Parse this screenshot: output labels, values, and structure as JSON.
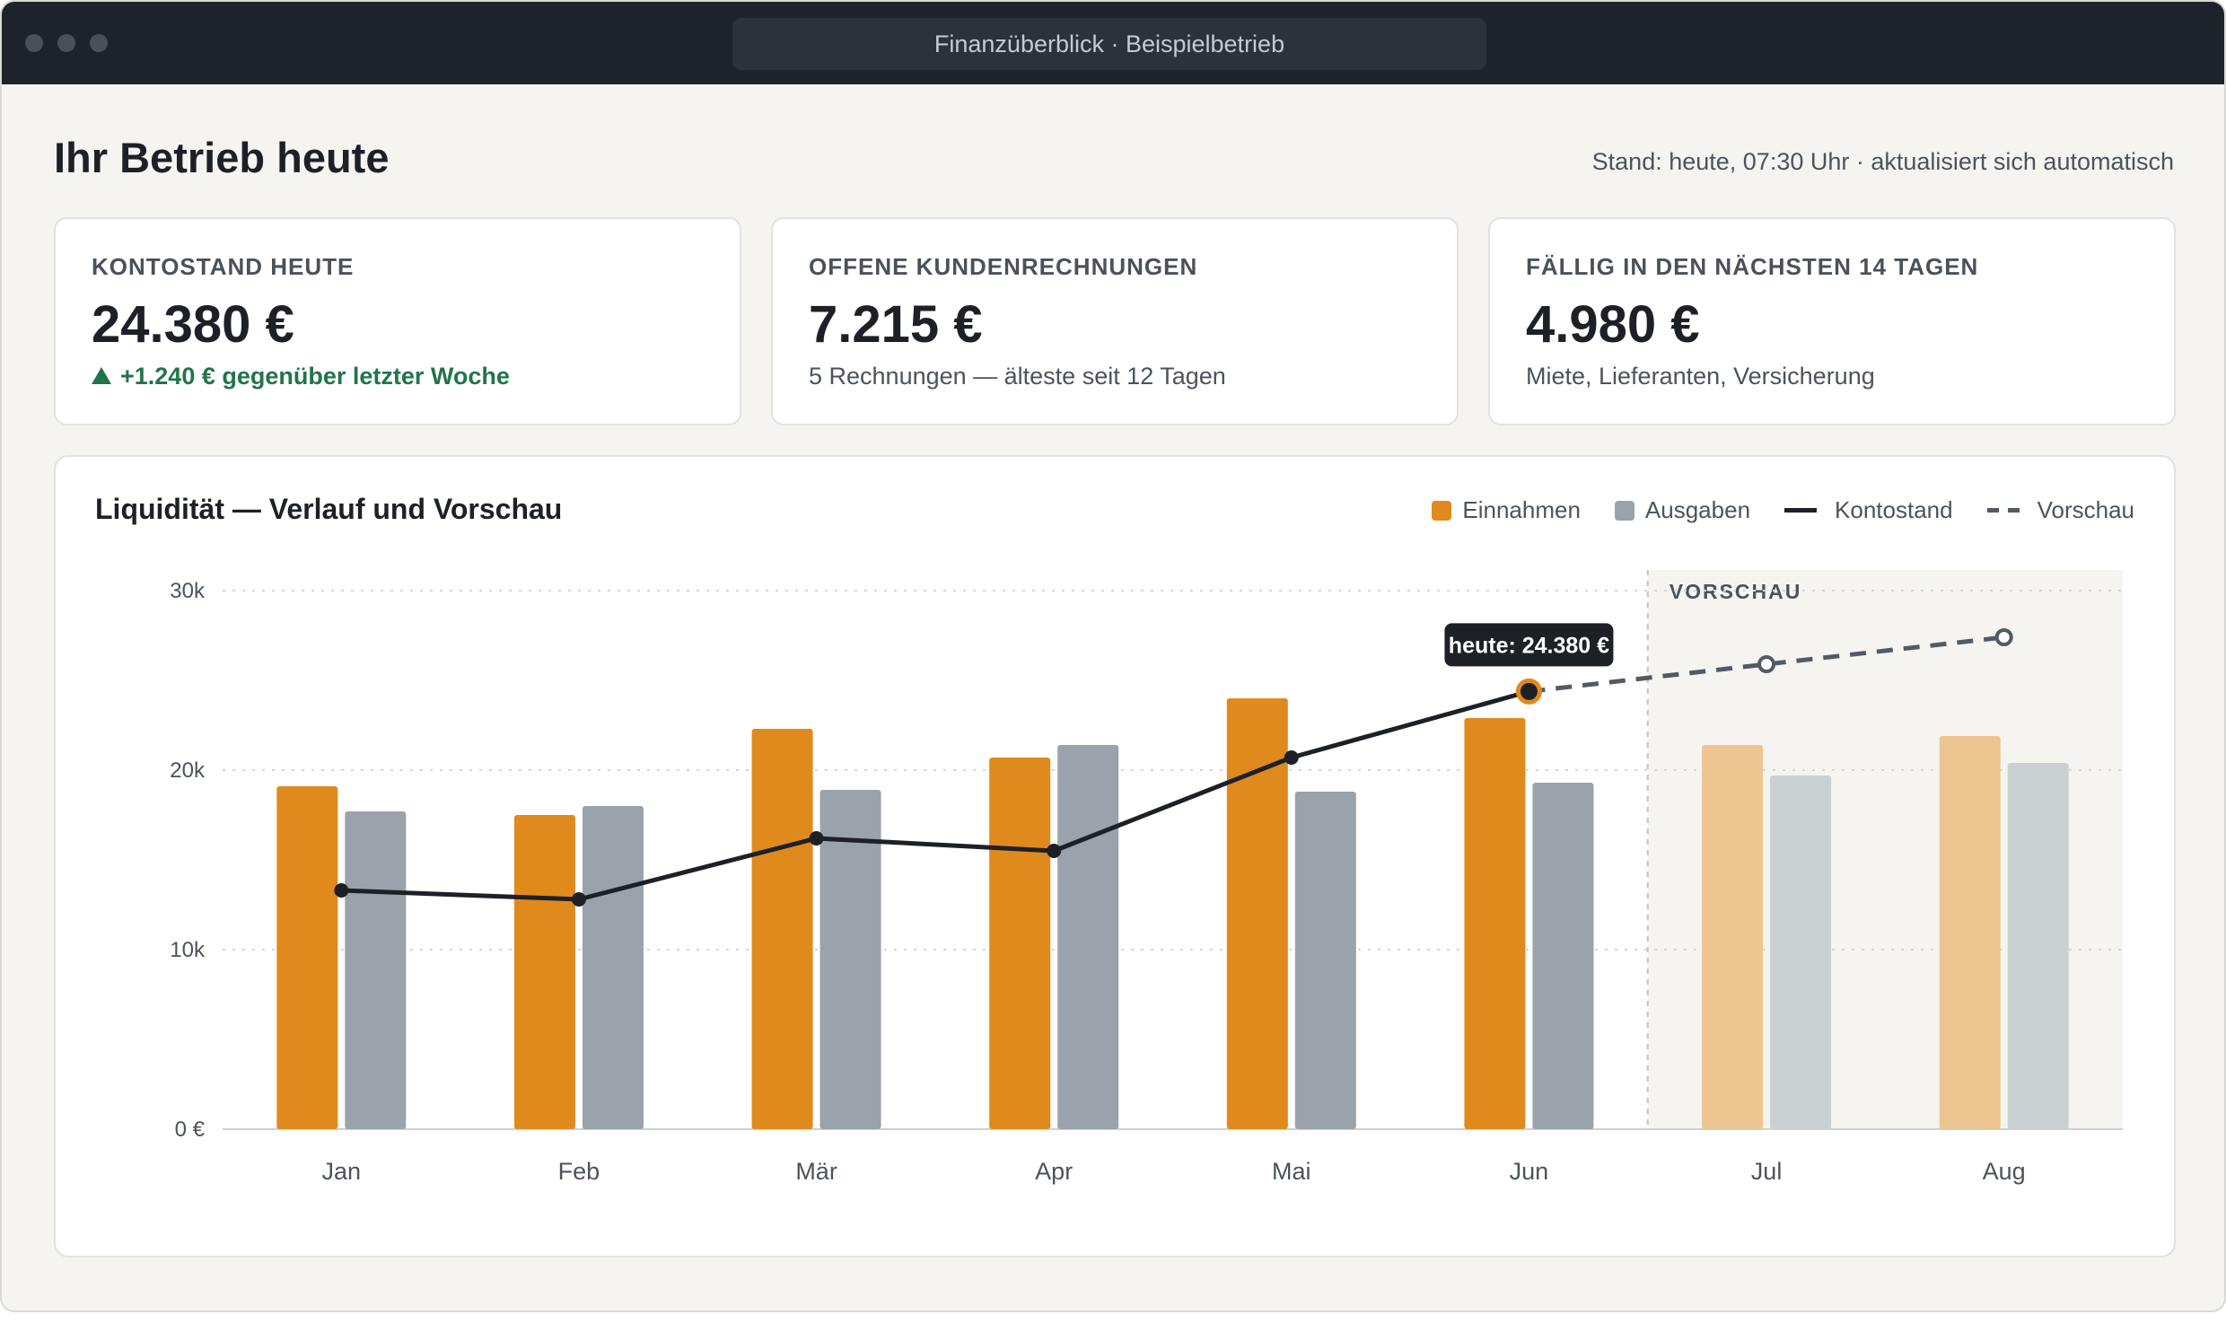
{
  "window": {
    "title": "Finanzüberblick · Beispielbetrieb"
  },
  "header": {
    "title": "Ihr Betrieb heute",
    "status": "Stand: heute, 07:30 Uhr · aktualisiert sich automatisch"
  },
  "cards": [
    {
      "label": "KONTOSTAND HEUTE",
      "value": "24.380 €",
      "sub": "+1.240 € gegenüber letzter Woche",
      "trend": "up"
    },
    {
      "label": "OFFENE KUNDENRECHNUNGEN",
      "value": "7.215 €",
      "sub": "5 Rechnungen — älteste seit 12 Tagen"
    },
    {
      "label": "FÄLLIG IN DEN NÄCHSTEN 14 TAGEN",
      "value": "4.980 €",
      "sub": "Miete, Lieferanten, Versicherung"
    }
  ],
  "legend": {
    "income": "Einnahmen",
    "expenses": "Ausgaben",
    "balance": "Kontostand",
    "forecast": "Vorschau"
  },
  "colors": {
    "income": "#e08a1e",
    "income_forecast": "#edc591",
    "expenses": "#9aa3ab",
    "expenses_forecast": "#cbd0d3",
    "balance": "#1d2127",
    "forecast_line": "#525a64",
    "forecast_bg": "#f5f4f1"
  },
  "chart_data": {
    "type": "bar",
    "title": "Liquidität — Verlauf und Vorschau",
    "categories": [
      "Jan",
      "Feb",
      "Mär",
      "Apr",
      "Mai",
      "Jun",
      "Jul",
      "Aug"
    ],
    "ylim": [
      0,
      30000
    ],
    "y_ticks": [
      0,
      10000,
      20000,
      30000
    ],
    "y_tick_labels": [
      "0 €",
      "10k",
      "20k",
      "30k"
    ],
    "grid": true,
    "legend_position": "top-right",
    "forecast_from_index": 6,
    "forecast_label": "VORSCHAU",
    "series": [
      {
        "name": "Einnahmen",
        "type": "bar",
        "values": [
          19100,
          17500,
          22300,
          20700,
          24000,
          22900,
          21400,
          21900
        ]
      },
      {
        "name": "Ausgaben",
        "type": "bar",
        "values": [
          17700,
          18000,
          18900,
          21400,
          18800,
          19300,
          19700,
          20400
        ]
      },
      {
        "name": "Kontostand",
        "type": "line",
        "x": [
          "Jan",
          "Feb",
          "Mär",
          "Apr",
          "Mai",
          "Jun"
        ],
        "values": [
          13300,
          12800,
          16200,
          15500,
          20700,
          24380
        ]
      },
      {
        "name": "Vorschau",
        "type": "line",
        "style": "dashed",
        "x": [
          "Jun",
          "Jul",
          "Aug"
        ],
        "values": [
          24380,
          25900,
          27400
        ]
      }
    ],
    "annotation": {
      "x": "Jun",
      "value": 24380,
      "text": "heute: 24.380 €"
    }
  }
}
